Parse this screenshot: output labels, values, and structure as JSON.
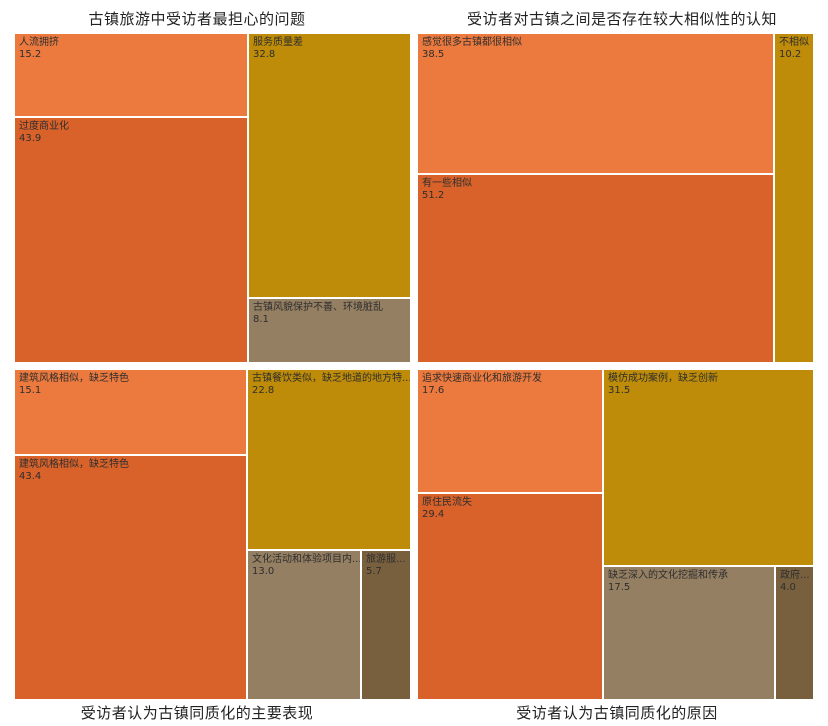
{
  "colors": {
    "orange_light": "#EC7A3E",
    "orange_dark": "#D9622A",
    "gold": "#BE8C08",
    "taupe": "#957F62",
    "brown": "#78603E"
  },
  "chart_data": [
    {
      "type": "treemap",
      "title": "古镇旅游中受访者最担心的问题",
      "items": [
        {
          "label": "人流拥挤",
          "value": 15.2
        },
        {
          "label": "过度商业化",
          "value": 43.9
        },
        {
          "label": "服务质量差",
          "value": 32.8
        },
        {
          "label": "古镇风貌保护不善、环境脏乱",
          "value": 8.1
        }
      ]
    },
    {
      "type": "treemap",
      "title": "受访者对古镇之间是否存在较大相似性的认知",
      "items": [
        {
          "label": "感觉很多古镇都很相似",
          "value": 38.5
        },
        {
          "label": "有一些相似",
          "value": 51.2
        },
        {
          "label": "不相似",
          "value": 10.2
        }
      ]
    },
    {
      "type": "treemap",
      "title": "受访者认为古镇同质化的主要表现",
      "items": [
        {
          "label": "建筑风格相似，缺乏特色",
          "value": 15.1
        },
        {
          "label": "建筑风格相似，缺乏特色",
          "value": 43.4
        },
        {
          "label": "古镇餐饮类似，缺乏地道的地方特...",
          "value": 22.8
        },
        {
          "label": "文化活动和体验项目内...",
          "value": 13.0
        },
        {
          "label": "旅游服...",
          "value": 5.7
        }
      ]
    },
    {
      "type": "treemap",
      "title": "受访者认为古镇同质化的原因",
      "items": [
        {
          "label": "追求快速商业化和旅游开发",
          "value": 17.6
        },
        {
          "label": "原住民流失",
          "value": 29.4
        },
        {
          "label": "模仿成功案例，缺乏创新",
          "value": 31.5
        },
        {
          "label": "缺乏深入的文化挖掘和传承",
          "value": 17.5
        },
        {
          "label": "政府...",
          "value": 4.0
        }
      ]
    }
  ]
}
